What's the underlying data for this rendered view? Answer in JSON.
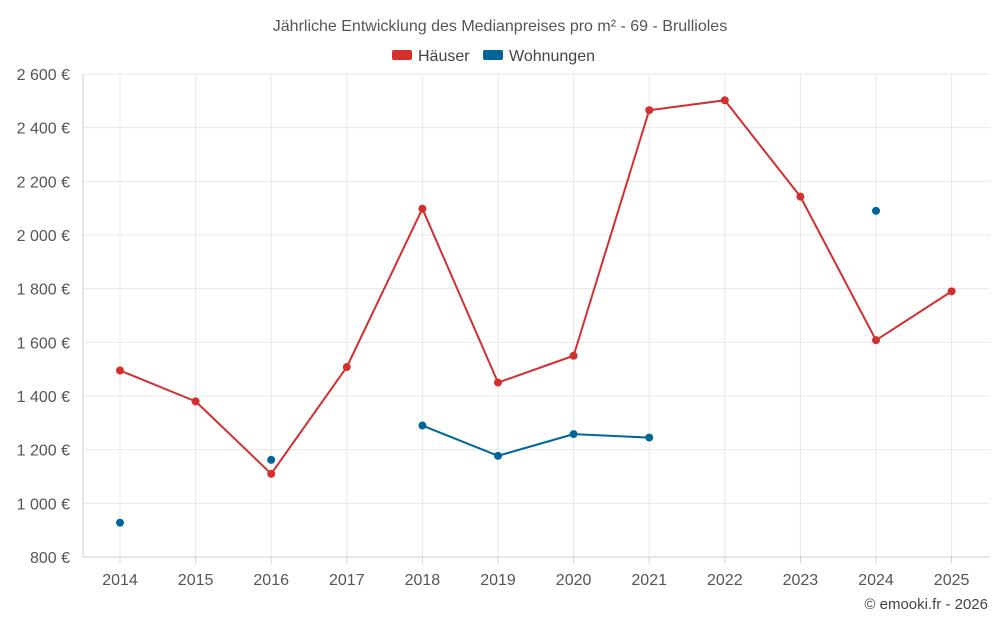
{
  "chart_data": {
    "type": "line",
    "title": "Jährliche Entwicklung des Medianpreises pro m² - 69 - Brullioles",
    "xlabel": "",
    "ylabel": "",
    "categories": [
      "2014",
      "2015",
      "2016",
      "2017",
      "2018",
      "2019",
      "2020",
      "2021",
      "2022",
      "2023",
      "2024",
      "2025"
    ],
    "ylim": [
      800,
      2600
    ],
    "yticks": [
      800,
      1000,
      1200,
      1400,
      1600,
      1800,
      2000,
      2200,
      2400,
      2600
    ],
    "ytick_labels": [
      "800 €",
      "1 000 €",
      "1 200 €",
      "1 400 €",
      "1 600 €",
      "1 800 €",
      "2 000 €",
      "2 200 €",
      "2 400 €",
      "2 600 €"
    ],
    "grid": true,
    "legend_position": "top-center",
    "series": [
      {
        "name": "Häuser",
        "color": "#d32f2f",
        "values": [
          1495,
          1380,
          1110,
          1508,
          2098,
          1450,
          1550,
          2465,
          2502,
          2143,
          1608,
          1790
        ]
      },
      {
        "name": "Wohnungen",
        "color": "#006699",
        "values": [
          928,
          null,
          1162,
          null,
          1290,
          1177,
          1258,
          1245,
          null,
          null,
          2090,
          null
        ]
      }
    ]
  },
  "credit": "© emooki.fr - 2026"
}
